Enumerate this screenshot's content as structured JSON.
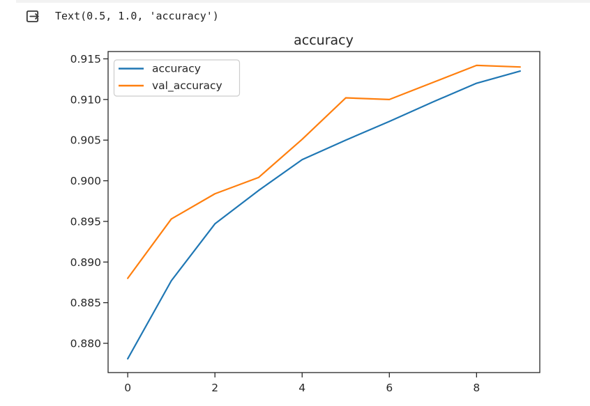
{
  "page": {
    "background": "#ffffff",
    "top_band_color": "#f2f2f2"
  },
  "console": {
    "icon": "output-arrow-icon",
    "output_text": "Text(0.5, 1.0, 'accuracy')",
    "text_color": "#212121"
  },
  "chart_data": {
    "type": "line",
    "title": "accuracy",
    "xlabel": "",
    "ylabel": "",
    "x": [
      0,
      1,
      2,
      3,
      4,
      5,
      6,
      7,
      8,
      9
    ],
    "series": [
      {
        "name": "accuracy",
        "color": "#1f77b4",
        "values": [
          0.8781,
          0.8877,
          0.8947,
          0.8988,
          0.9026,
          0.905,
          0.9073,
          0.9097,
          0.912,
          0.9135
        ]
      },
      {
        "name": "val_accuracy",
        "color": "#ff7f0e",
        "values": [
          0.888,
          0.8953,
          0.8984,
          0.9004,
          0.9051,
          0.9102,
          0.91,
          0.9121,
          0.9142,
          0.914
        ]
      }
    ],
    "xticks": [
      0,
      2,
      4,
      6,
      8
    ],
    "yticks": [
      0.88,
      0.885,
      0.89,
      0.895,
      0.9,
      0.905,
      0.91,
      0.915
    ],
    "ytick_decimals": 3,
    "xlim": [
      -0.45,
      9.45
    ],
    "ylim": [
      0.8764,
      0.9159
    ],
    "grid": false,
    "legend_position": "upper left",
    "text_color": "#262626",
    "spine_color": "#262626"
  }
}
